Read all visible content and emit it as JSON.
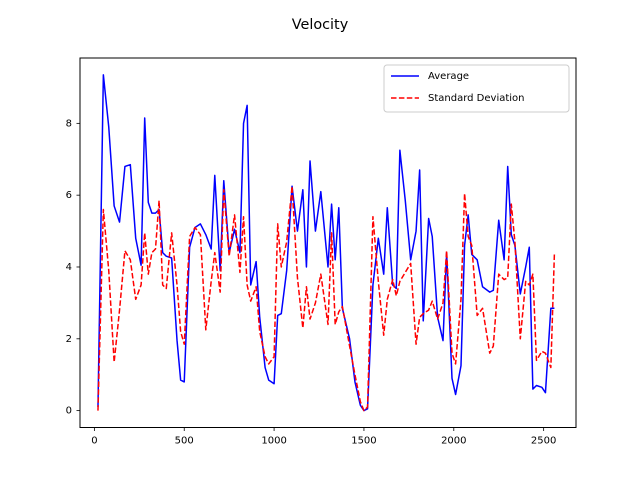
{
  "chart_data": {
    "type": "line",
    "title": "Velocity",
    "xlabel": "",
    "ylabel": "",
    "xlim": [
      -80,
      2680
    ],
    "ylim": [
      -0.47,
      9.82
    ],
    "xticks": [
      0,
      500,
      1000,
      1500,
      2000,
      2500
    ],
    "yticks": [
      0,
      2,
      4,
      6,
      8
    ],
    "grid": false,
    "legend_position": "top-right",
    "x": [
      20,
      50,
      80,
      110,
      140,
      170,
      200,
      230,
      260,
      280,
      300,
      320,
      340,
      360,
      380,
      400,
      430,
      460,
      480,
      500,
      530,
      560,
      590,
      620,
      650,
      670,
      700,
      720,
      750,
      780,
      810,
      830,
      850,
      870,
      900,
      920,
      950,
      970,
      1000,
      1020,
      1040,
      1070,
      1100,
      1130,
      1160,
      1180,
      1200,
      1230,
      1260,
      1300,
      1320,
      1340,
      1360,
      1380,
      1420,
      1450,
      1480,
      1500,
      1520,
      1550,
      1580,
      1610,
      1630,
      1660,
      1680,
      1700,
      1730,
      1760,
      1790,
      1810,
      1830,
      1860,
      1880,
      1910,
      1940,
      1960,
      1990,
      2010,
      2040,
      2060,
      2080,
      2100,
      2130,
      2160,
      2200,
      2220,
      2250,
      2280,
      2300,
      2320,
      2340,
      2370,
      2400,
      2420,
      2440,
      2460,
      2490,
      2510,
      2540,
      2560
    ],
    "series": [
      {
        "name": "Average",
        "color": "#0000ff",
        "dash": "solid",
        "values": [
          0.1,
          9.35,
          7.9,
          5.7,
          5.25,
          6.8,
          6.85,
          4.8,
          4.05,
          8.15,
          5.8,
          5.5,
          5.5,
          5.6,
          4.4,
          4.3,
          4.25,
          1.95,
          0.85,
          0.8,
          4.55,
          5.1,
          5.2,
          4.9,
          4.5,
          6.55,
          3.9,
          6.4,
          4.4,
          5.05,
          4.4,
          8.0,
          8.5,
          3.5,
          4.15,
          2.6,
          1.2,
          0.85,
          0.75,
          2.65,
          2.7,
          3.9,
          6.25,
          5.0,
          6.15,
          4.0,
          6.95,
          5.0,
          6.1,
          4.0,
          5.75,
          4.2,
          5.65,
          2.85,
          2.0,
          0.8,
          0.15,
          0.0,
          0.05,
          3.5,
          4.8,
          3.8,
          5.65,
          3.5,
          3.4,
          7.25,
          5.85,
          4.2,
          5.0,
          6.7,
          2.5,
          5.35,
          4.85,
          2.6,
          1.95,
          4.4,
          0.9,
          0.45,
          1.25,
          4.6,
          5.45,
          4.35,
          4.2,
          3.45,
          3.3,
          3.35,
          5.3,
          4.2,
          6.8,
          4.9,
          4.6,
          3.25,
          4.0,
          4.55,
          0.6,
          0.7,
          0.65,
          0.5,
          2.85,
          2.85
        ]
      },
      {
        "name": "Standard Deviation",
        "color": "#ff0000",
        "dash": "dashed",
        "values": [
          0.0,
          5.6,
          3.9,
          1.35,
          2.8,
          4.45,
          4.2,
          3.1,
          3.5,
          4.95,
          3.8,
          4.4,
          4.5,
          5.85,
          3.5,
          3.4,
          4.95,
          3.5,
          2.2,
          1.85,
          4.85,
          5.1,
          4.9,
          2.25,
          3.6,
          4.4,
          3.3,
          6.15,
          4.3,
          5.45,
          3.85,
          5.4,
          3.5,
          3.05,
          3.45,
          2.2,
          1.5,
          1.3,
          1.5,
          5.2,
          4.0,
          4.7,
          6.25,
          3.7,
          2.3,
          3.45,
          2.55,
          3.0,
          3.8,
          2.4,
          4.95,
          2.4,
          2.75,
          2.9,
          1.8,
          1.0,
          0.25,
          0.0,
          0.1,
          5.4,
          3.6,
          2.1,
          3.1,
          3.65,
          3.2,
          3.6,
          3.85,
          4.1,
          1.85,
          2.6,
          2.7,
          2.8,
          3.05,
          2.55,
          3.0,
          4.45,
          1.6,
          1.3,
          3.1,
          6.05,
          4.85,
          4.6,
          2.65,
          2.85,
          1.6,
          1.8,
          3.8,
          3.65,
          3.7,
          5.75,
          4.7,
          2.0,
          3.6,
          3.5,
          3.8,
          1.4,
          1.65,
          1.6,
          1.2,
          4.4
        ]
      }
    ]
  }
}
